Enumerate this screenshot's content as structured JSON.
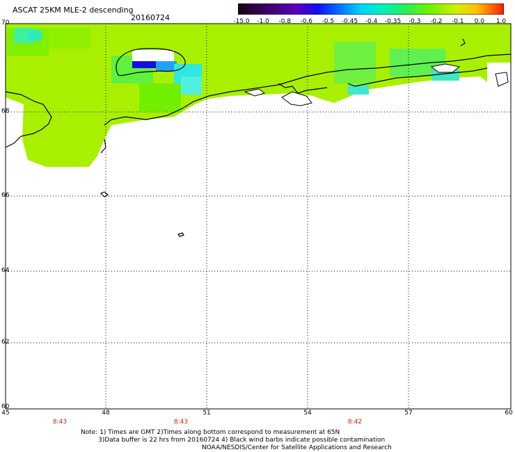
{
  "header": {
    "title": "ASCAT 25KM MLE-2 descending",
    "date": "20160724"
  },
  "colorbar": {
    "labels": [
      "-15.0",
      "-1.0",
      "-0.8",
      "-0.6",
      "-0.5",
      "-0.45",
      "-0.4",
      "-0.35",
      "-0.3",
      "-0.2",
      "-0.1",
      "0.0",
      "1.0"
    ],
    "colors": [
      "#1a0010",
      "#3a0060",
      "#5a00b0",
      "#2020e8",
      "#0060ff",
      "#00a8ff",
      "#00e0f0",
      "#00f0a0",
      "#30f040",
      "#90f000",
      "#f0f000",
      "#ff9000",
      "#ff2000"
    ]
  },
  "map": {
    "lat_labels": [
      "70",
      "68",
      "66",
      "64",
      "62",
      "60"
    ],
    "lon_labels": [
      "45",
      "48",
      "51",
      "54",
      "57",
      "60"
    ],
    "times": [
      "8:43",
      "8:43",
      "8:42"
    ],
    "land_color": "#a8f000"
  },
  "footer": {
    "line1": "Note: 1) Times are GMT 2)Times along bottom correspond to measurement at 65N",
    "line2": "3)Data buffer is 22 hrs from 20160724 4) Black wind barbs indicate possible contamination",
    "line3": "NOAA/NESDIS/Center for Satellite Applications and Research"
  }
}
